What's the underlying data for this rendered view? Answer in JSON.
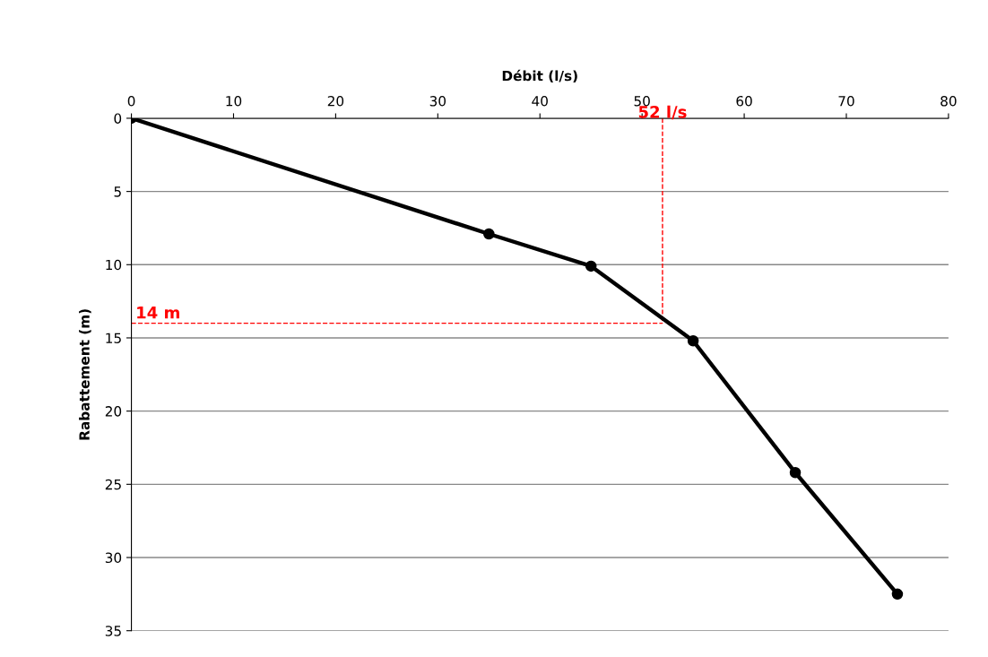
{
  "chart_data": {
    "type": "line",
    "xlabel": "Débit (l/s)",
    "ylabel": "Rabattement (m)",
    "x": [
      0,
      35,
      45,
      55,
      65,
      75
    ],
    "series": [
      {
        "color": "#000000",
        "values": [
          0,
          7.9,
          10.1,
          15.2,
          24.2,
          32.5
        ]
      }
    ],
    "xlim": [
      0,
      80
    ],
    "xticks": [
      0,
      10,
      20,
      30,
      40,
      50,
      60,
      70,
      80
    ],
    "ylim": [
      35,
      0
    ],
    "yticks": [
      0,
      5,
      10,
      15,
      20,
      25,
      30,
      35
    ],
    "grid": "y",
    "marker": "circle",
    "line_style": "solid",
    "legend": false,
    "ref_lines": [
      {
        "axis": "x",
        "value": 52,
        "label": "52 l/s",
        "color": "#ff0000",
        "line_style": "dashed"
      },
      {
        "axis": "y",
        "value": 14,
        "label": "14 m",
        "color": "#ff0000",
        "line_style": "dashed"
      }
    ]
  }
}
